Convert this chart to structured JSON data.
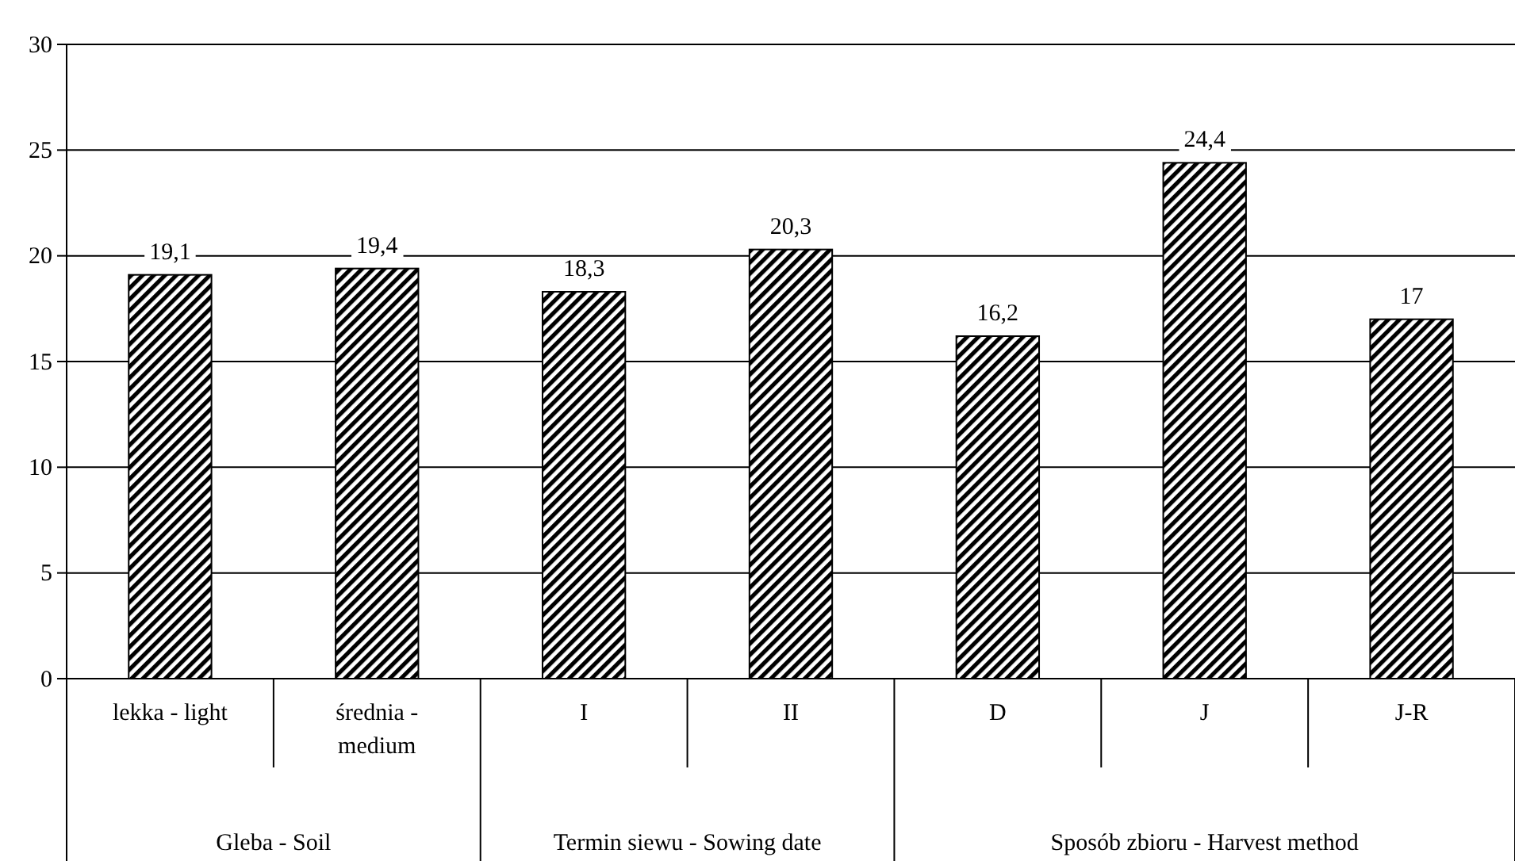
{
  "chart_data": {
    "type": "bar",
    "categories": [
      "lekka - light",
      "średnia - medium",
      "I",
      "II",
      "D",
      "J",
      "J-R"
    ],
    "values": [
      19.1,
      19.4,
      18.3,
      20.3,
      16.2,
      24.4,
      17
    ],
    "color": "#000000",
    "value_labels": [
      "19,1",
      "19,4",
      "18,3",
      "20,3",
      "16,2",
      "24,4",
      "17"
    ],
    "ylim": [
      0,
      30
    ],
    "yticks": [
      0,
      5,
      10,
      15,
      20,
      25,
      30
    ],
    "grid": "y",
    "annotations": [
      "Gleba - Soil",
      "Termin siewu - Sowing date",
      "Sposób zbioru - Harvest method"
    ]
  }
}
